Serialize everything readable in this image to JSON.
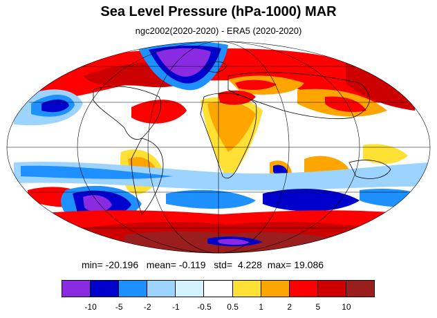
{
  "title": "Sea Level Pressure (hPa-1000) MAR",
  "subtitle": "ngc2002(2020-2020) - ERA5 (2020-2020)",
  "stats": {
    "min_label": "min=",
    "min": "-20.196",
    "mean_label": "mean=",
    "mean": "-0.119",
    "std_label": "std=",
    "std": "4.228",
    "max_label": "max=",
    "max": "19.086"
  },
  "colorbar": {
    "colors": [
      "#8a2be2",
      "#0000cd",
      "#1e90ff",
      "#9dd4ff",
      "#d4f2ff",
      "#ffffff",
      "#ffe135",
      "#ffa500",
      "#ff0000",
      "#cc0000",
      "#9a1e1e"
    ],
    "labels": [
      "-10",
      "-5",
      "-2",
      "-1",
      "-0.5",
      "0.5",
      "1",
      "2",
      "5",
      "10"
    ]
  },
  "map": {
    "projection": "mollweide",
    "colors": {
      "ocean_background": "#ffffff",
      "coastline": "#000000",
      "grid": "#000000"
    }
  }
}
